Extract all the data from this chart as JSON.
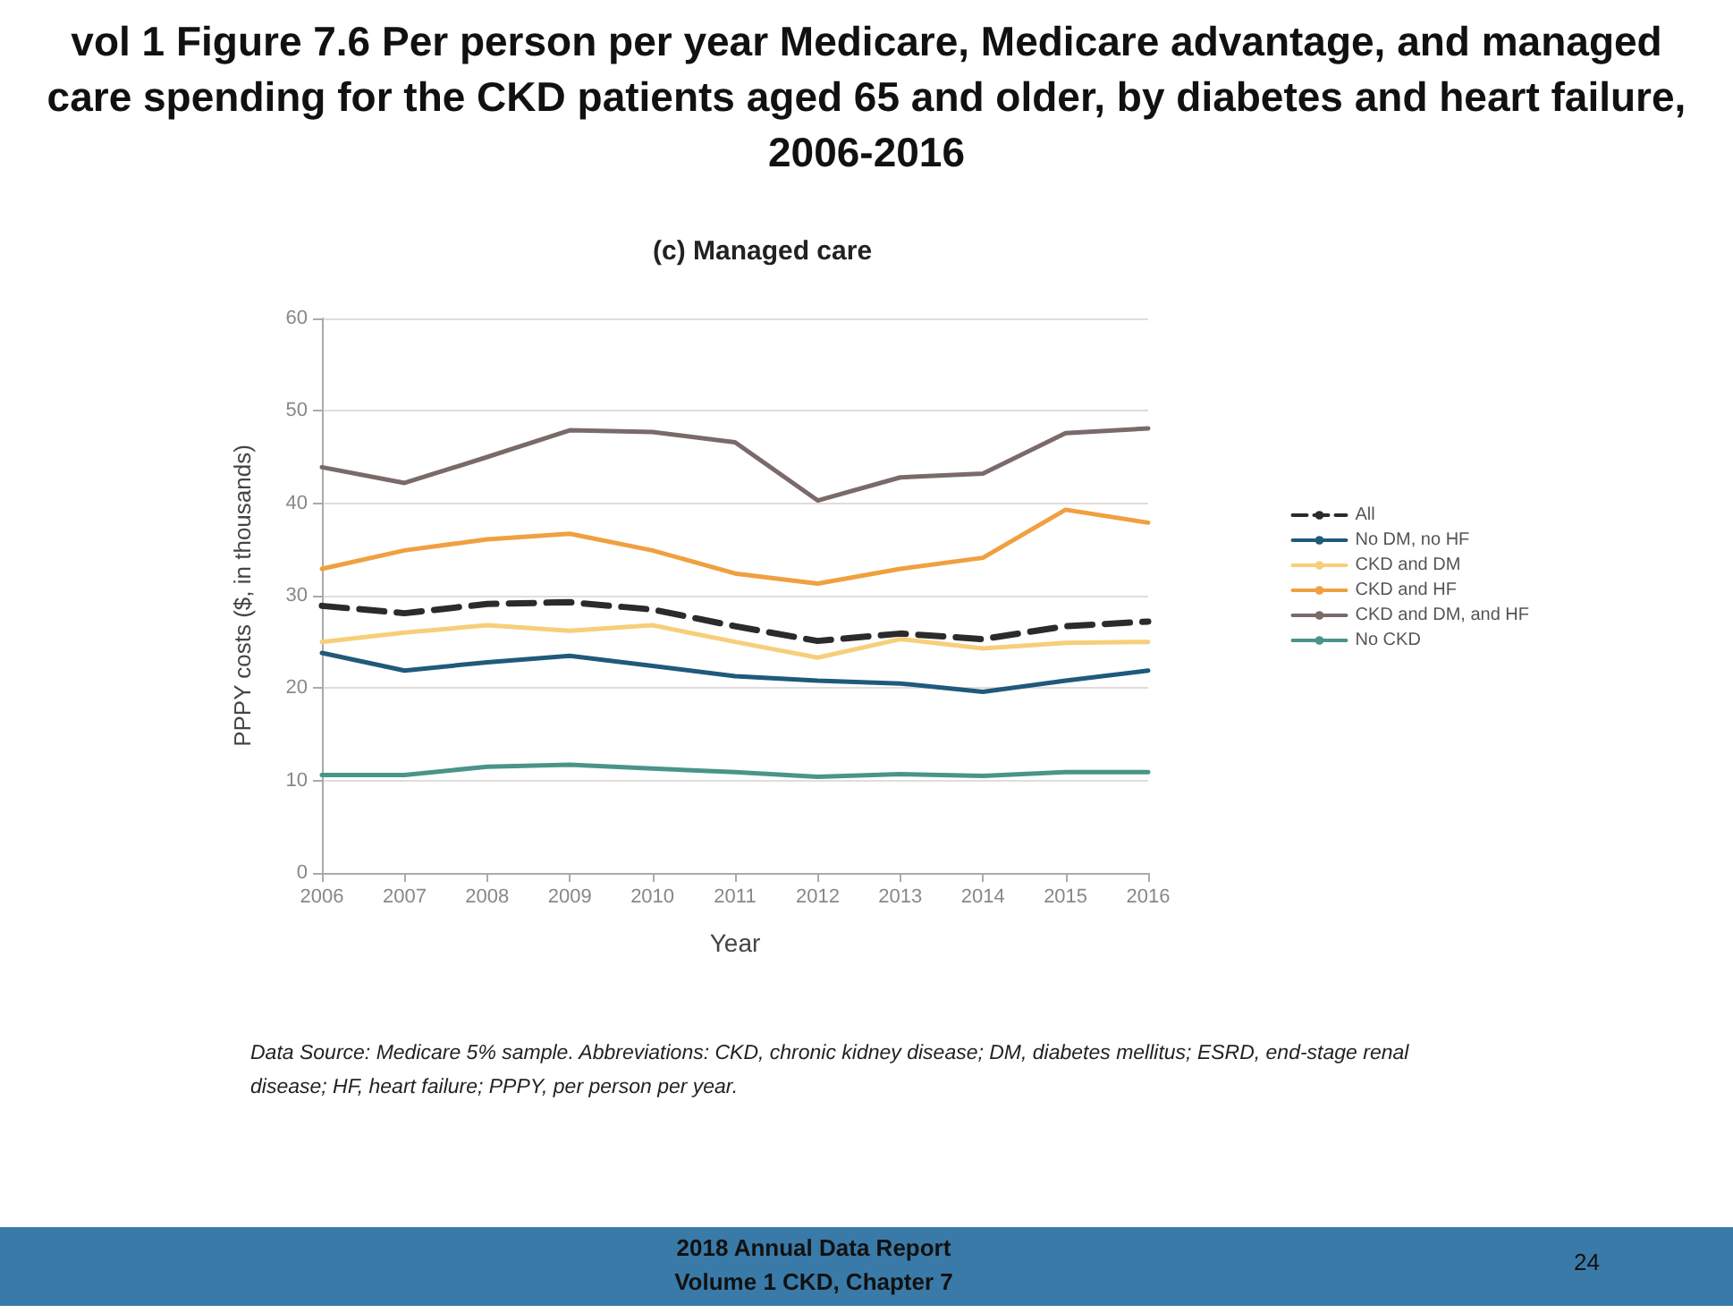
{
  "chart_data": {
    "type": "line",
    "title": "vol 1 Figure 7.6 Per person per year Medicare, Medicare advantage, and managed care spending for the CKD patients aged 65 and older, by diabetes and heart failure, 2006-2016",
    "subtitle": "(c) Managed care",
    "xlabel": "Year",
    "ylabel": "PPPY costs ($, in thousands)",
    "categories": [
      "2006",
      "2007",
      "2008",
      "2009",
      "2010",
      "2011",
      "2012",
      "2013",
      "2014",
      "2015",
      "2016"
    ],
    "series": [
      {
        "name": "All",
        "color": "#2b2b2b",
        "line_style": "dashed",
        "values": [
          28.9,
          28.1,
          29.1,
          29.3,
          28.5,
          26.7,
          25.1,
          25.9,
          25.3,
          26.7,
          27.2
        ]
      },
      {
        "name": "No DM, no HF",
        "color": "#1f5a7a",
        "values": [
          23.8,
          21.9,
          22.8,
          23.5,
          22.4,
          21.3,
          20.8,
          20.5,
          19.6,
          20.8,
          21.9
        ]
      },
      {
        "name": "CKD and DM",
        "color": "#f7cf7a",
        "values": [
          25.0,
          26.0,
          26.8,
          26.2,
          26.8,
          25.0,
          23.3,
          25.3,
          24.3,
          24.9,
          25.0
        ]
      },
      {
        "name": "CKD and HF",
        "color": "#f0a040",
        "values": [
          32.9,
          34.9,
          36.1,
          36.7,
          34.9,
          32.4,
          31.3,
          32.9,
          34.1,
          39.3,
          37.9
        ]
      },
      {
        "name": "CKD and DM, and HF",
        "color": "#7a6a6a",
        "values": [
          43.9,
          42.2,
          45.0,
          47.9,
          47.7,
          46.6,
          40.3,
          42.8,
          43.2,
          47.6,
          48.1
        ]
      },
      {
        "name": "No CKD",
        "color": "#4a9488",
        "values": [
          10.6,
          10.6,
          11.5,
          11.7,
          11.3,
          10.9,
          10.4,
          10.7,
          10.5,
          10.9,
          10.9
        ]
      }
    ],
    "ylim": [
      0,
      60
    ],
    "yticks": [
      0,
      10,
      20,
      30,
      40,
      50,
      60
    ],
    "grid": "y",
    "legend": "right",
    "marker": "none",
    "line_style": "solid",
    "annotations": [
      "Data Source: Medicare 5% sample. Abbreviations: CKD, chronic kidney disease; DM, diabetes mellitus; ESRD, end-stage renal disease; HF, heart failure; PPPY, per person per year.",
      "2018 Annual Data Report\nVolume 1 CKD, Chapter 7",
      "24"
    ]
  }
}
